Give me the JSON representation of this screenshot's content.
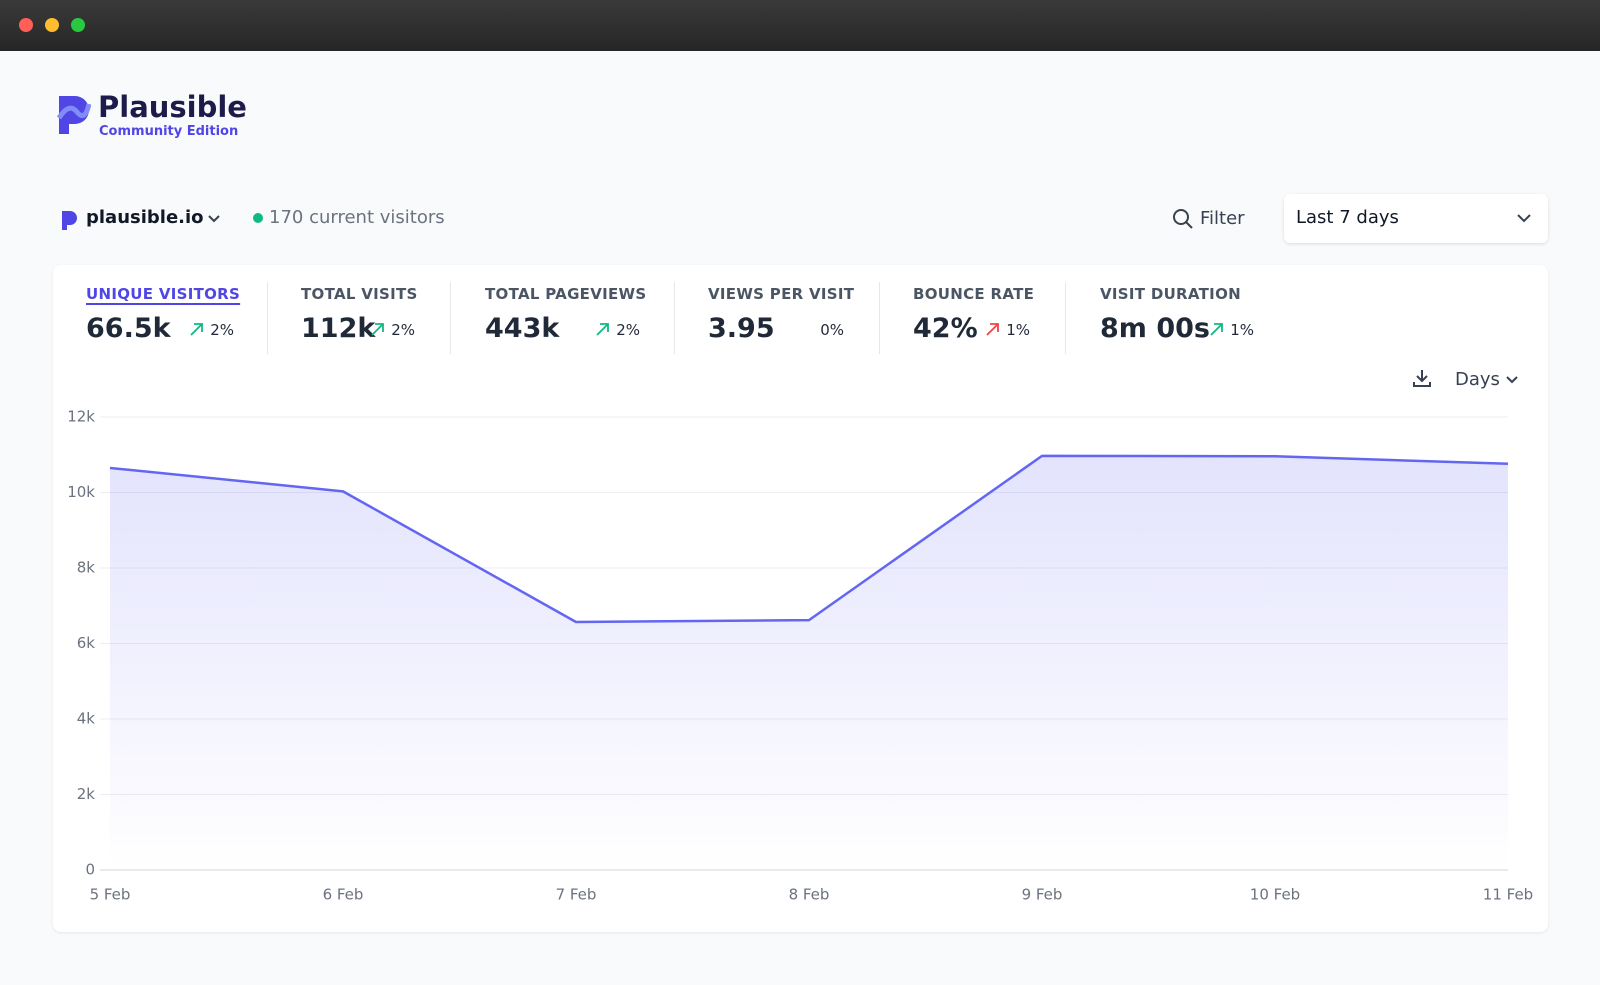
{
  "logo": {
    "name": "Plausible",
    "edition": "Community Edition"
  },
  "site": {
    "domain": "plausible.io",
    "current_visitors": "170 current visitors"
  },
  "toolbar": {
    "filter": "Filter",
    "period": "Last 7 days",
    "interval": "Days"
  },
  "selected_stat": 0,
  "stats": [
    {
      "label": "UNIQUE VISITORS",
      "value": "66.5k",
      "change": "2%",
      "change_color": "#10b981"
    },
    {
      "label": "TOTAL VISITS",
      "value": "112k",
      "change": "2%",
      "change_color": "#10b981"
    },
    {
      "label": "TOTAL PAGEVIEWS",
      "value": "443k",
      "change": "2%",
      "change_color": "#10b981"
    },
    {
      "label": "VIEWS PER VISIT",
      "value": "3.95",
      "change": "0%"
    },
    {
      "label": "BOUNCE RATE",
      "value": "42%",
      "change": "1%",
      "change_color": "#ef4444"
    },
    {
      "label": "VISIT DURATION",
      "value": "8m 00s",
      "change": "1%",
      "change_color": "#10b981"
    }
  ],
  "chart_data": {
    "type": "area",
    "categories": [
      "5 Feb",
      "6 Feb",
      "7 Feb",
      "8 Feb",
      "9 Feb",
      "10 Feb",
      "11 Feb"
    ],
    "values": [
      10650,
      10030,
      6570,
      6620,
      10970,
      10960,
      10760
    ],
    "color": "#6366f1",
    "ylim": [
      0,
      12000
    ],
    "yticks": [
      0,
      {
        "value": 2000,
        "label": "2k"
      },
      {
        "value": 4000,
        "label": "4k"
      },
      {
        "value": 6000,
        "label": "6k"
      },
      {
        "value": 8000,
        "label": "8k"
      },
      {
        "value": 10000,
        "label": "10k"
      },
      {
        "value": 12000,
        "label": "12k"
      }
    ],
    "grid": true
  }
}
